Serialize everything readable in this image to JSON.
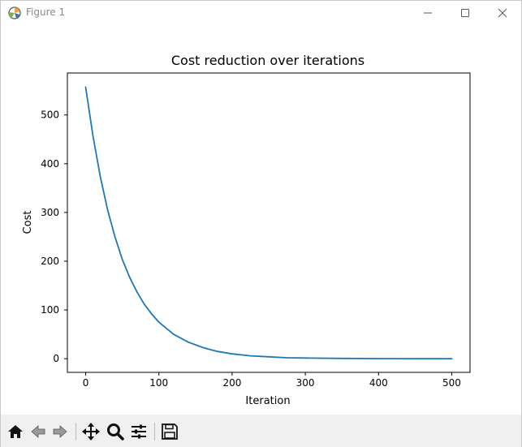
{
  "window": {
    "title": "Figure 1"
  },
  "toolbar": {
    "items": [
      {
        "name": "home-icon"
      },
      {
        "name": "back-arrow-icon"
      },
      {
        "name": "forward-arrow-icon"
      },
      {
        "name": "pan-move-icon"
      },
      {
        "name": "zoom-magnifier-icon"
      },
      {
        "name": "configure-subplots-icon"
      },
      {
        "name": "save-floppy-icon"
      }
    ]
  },
  "chart_data": {
    "type": "line",
    "title": "Cost reduction over iterations",
    "xlabel": "Iteration",
    "ylabel": "Cost",
    "xlim": [
      -25,
      525
    ],
    "ylim": [
      -28,
      586
    ],
    "xticks": [
      0,
      100,
      200,
      300,
      400,
      500
    ],
    "yticks": [
      0,
      100,
      200,
      300,
      400,
      500
    ],
    "grid": false,
    "series": [
      {
        "color": "#1f77b4",
        "x": [
          0,
          10,
          20,
          30,
          40,
          50,
          60,
          70,
          80,
          90,
          100,
          120,
          140,
          160,
          180,
          200,
          225,
          250,
          275,
          300,
          350,
          400,
          450,
          500
        ],
        "y": [
          557,
          456,
          373,
          305,
          250,
          204,
          167,
          137,
          112,
          92,
          75,
          50,
          34,
          23,
          15,
          10,
          6,
          4,
          2,
          1.5,
          0.7,
          0.3,
          0.1,
          0
        ]
      }
    ]
  }
}
